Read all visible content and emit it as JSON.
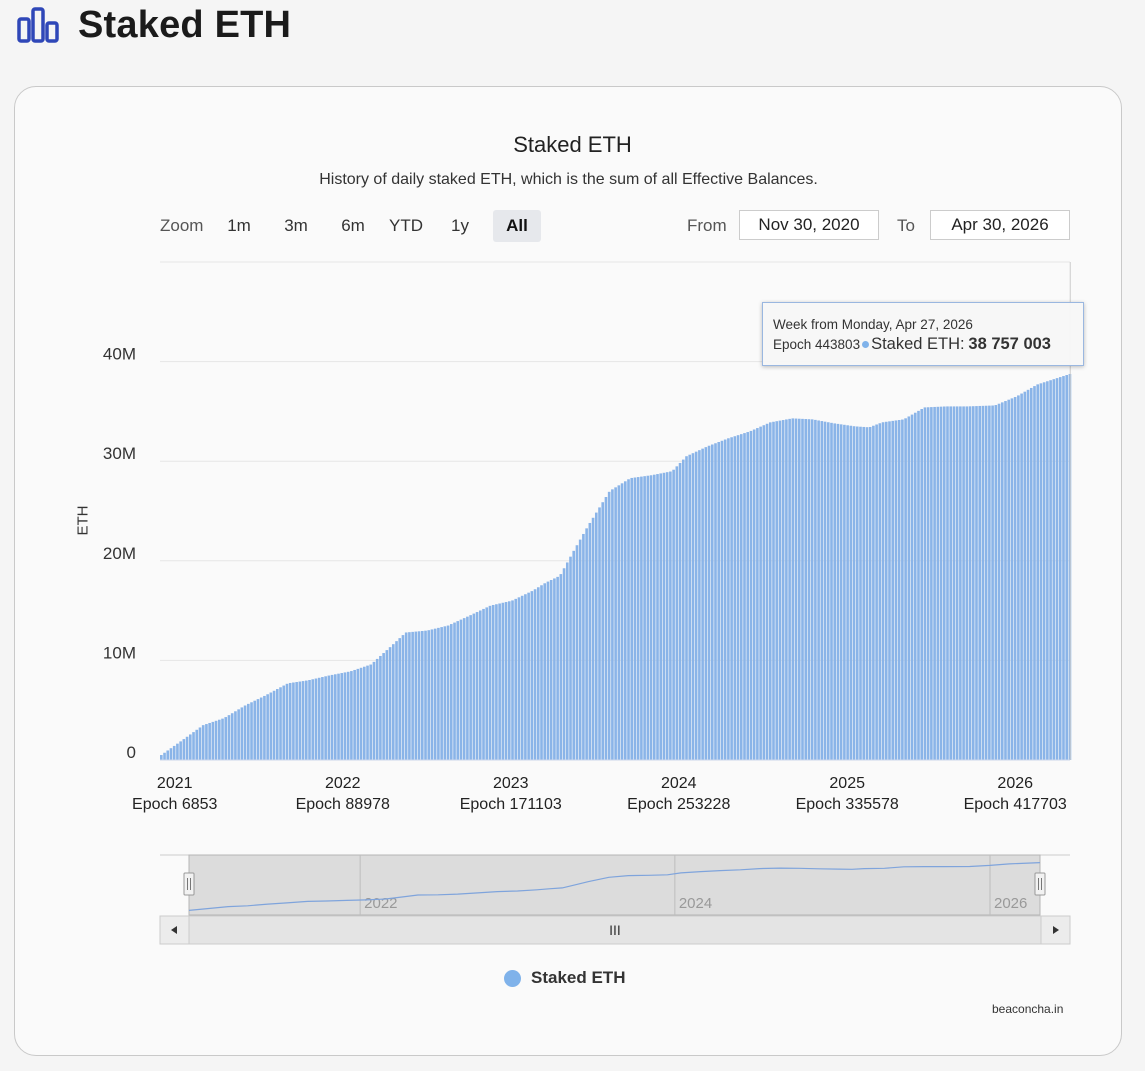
{
  "header": {
    "title": "Staked ETH",
    "icon": "bar-chart-icon",
    "icon_color": "#2f47b8"
  },
  "chart": {
    "title": "Staked ETH",
    "subtitle": "History of daily staked ETH, which is the sum of all Effective Balances.",
    "zoom": {
      "label": "Zoom",
      "buttons": [
        "1m",
        "3m",
        "6m",
        "YTD",
        "1y",
        "All"
      ],
      "active": "All"
    },
    "range": {
      "from_label": "From",
      "from_value": "Nov 30, 2020",
      "to_label": "To",
      "to_value": "Apr 30, 2026"
    },
    "tooltip": {
      "line1": "Week from Monday, Apr 27, 2026",
      "epoch": "Epoch 443803",
      "series": "Staked ETH:",
      "value": "38 757 003"
    },
    "legend": "Staked ETH",
    "credits": "beaconcha.in",
    "navigator": {
      "labels": [
        "2022",
        "2024",
        "2026"
      ],
      "scroll_grip": "III"
    }
  },
  "chart_data": {
    "type": "bar",
    "title": "Staked ETH",
    "subtitle": "History of daily staked ETH, which is the sum of all Effective Balances.",
    "ylabel": "ETH",
    "xlabel": "",
    "ylim": [
      0,
      50000000
    ],
    "yticks": [
      {
        "label": "0",
        "value": 0
      },
      {
        "label": "10M",
        "value": 10000000
      },
      {
        "label": "20M",
        "value": 20000000
      },
      {
        "label": "30M",
        "value": 30000000
      },
      {
        "label": "40M",
        "value": 40000000
      }
    ],
    "xlim": [
      "2020-11-30",
      "2026-04-30"
    ],
    "xticks": [
      {
        "label": "2021",
        "epoch": "Epoch 6853",
        "date": "2021-01-01"
      },
      {
        "label": "2022",
        "epoch": "Epoch 88978",
        "date": "2022-01-01"
      },
      {
        "label": "2023",
        "epoch": "Epoch 171103",
        "date": "2023-01-01"
      },
      {
        "label": "2024",
        "epoch": "Epoch 253228",
        "date": "2024-01-01"
      },
      {
        "label": "2025",
        "epoch": "Epoch 335578",
        "date": "2025-01-01"
      },
      {
        "label": "2026",
        "epoch": "Epoch 417703",
        "date": "2026-01-01"
      }
    ],
    "grid": true,
    "legend_position": "bottom",
    "series": [
      {
        "name": "Staked ETH",
        "color": "#8ab4e8",
        "points": [
          {
            "x": "2020-11-30",
            "y": 500000
          },
          {
            "x": "2021-01-15",
            "y": 2000000
          },
          {
            "x": "2021-03-01",
            "y": 3500000
          },
          {
            "x": "2021-04-15",
            "y": 4200000
          },
          {
            "x": "2021-06-01",
            "y": 5500000
          },
          {
            "x": "2021-07-15",
            "y": 6500000
          },
          {
            "x": "2021-09-01",
            "y": 7700000
          },
          {
            "x": "2021-10-15",
            "y": 8000000
          },
          {
            "x": "2021-12-01",
            "y": 8500000
          },
          {
            "x": "2022-01-15",
            "y": 8900000
          },
          {
            "x": "2022-03-01",
            "y": 9600000
          },
          {
            "x": "2022-04-15",
            "y": 11500000
          },
          {
            "x": "2022-05-15",
            "y": 12800000
          },
          {
            "x": "2022-07-01",
            "y": 13000000
          },
          {
            "x": "2022-08-15",
            "y": 13500000
          },
          {
            "x": "2022-10-01",
            "y": 14500000
          },
          {
            "x": "2022-11-15",
            "y": 15500000
          },
          {
            "x": "2023-01-01",
            "y": 16000000
          },
          {
            "x": "2023-02-15",
            "y": 17000000
          },
          {
            "x": "2023-03-15",
            "y": 17800000
          },
          {
            "x": "2023-04-15",
            "y": 18500000
          },
          {
            "x": "2023-05-15",
            "y": 21000000
          },
          {
            "x": "2023-06-15",
            "y": 23500000
          },
          {
            "x": "2023-08-01",
            "y": 27000000
          },
          {
            "x": "2023-09-15",
            "y": 28300000
          },
          {
            "x": "2023-11-01",
            "y": 28600000
          },
          {
            "x": "2023-12-15",
            "y": 29000000
          },
          {
            "x": "2024-01-15",
            "y": 30500000
          },
          {
            "x": "2024-03-01",
            "y": 31500000
          },
          {
            "x": "2024-04-15",
            "y": 32300000
          },
          {
            "x": "2024-06-01",
            "y": 33000000
          },
          {
            "x": "2024-07-15",
            "y": 33900000
          },
          {
            "x": "2024-09-01",
            "y": 34300000
          },
          {
            "x": "2024-10-15",
            "y": 34200000
          },
          {
            "x": "2024-12-01",
            "y": 33800000
          },
          {
            "x": "2025-01-15",
            "y": 33500000
          },
          {
            "x": "2025-02-15",
            "y": 33400000
          },
          {
            "x": "2025-03-15",
            "y": 33900000
          },
          {
            "x": "2025-05-01",
            "y": 34200000
          },
          {
            "x": "2025-06-15",
            "y": 35400000
          },
          {
            "x": "2025-08-01",
            "y": 35500000
          },
          {
            "x": "2025-09-15",
            "y": 35500000
          },
          {
            "x": "2025-11-15",
            "y": 35600000
          },
          {
            "x": "2026-01-01",
            "y": 36500000
          },
          {
            "x": "2026-02-15",
            "y": 37700000
          },
          {
            "x": "2026-04-27",
            "y": 38757003
          }
        ]
      }
    ]
  }
}
